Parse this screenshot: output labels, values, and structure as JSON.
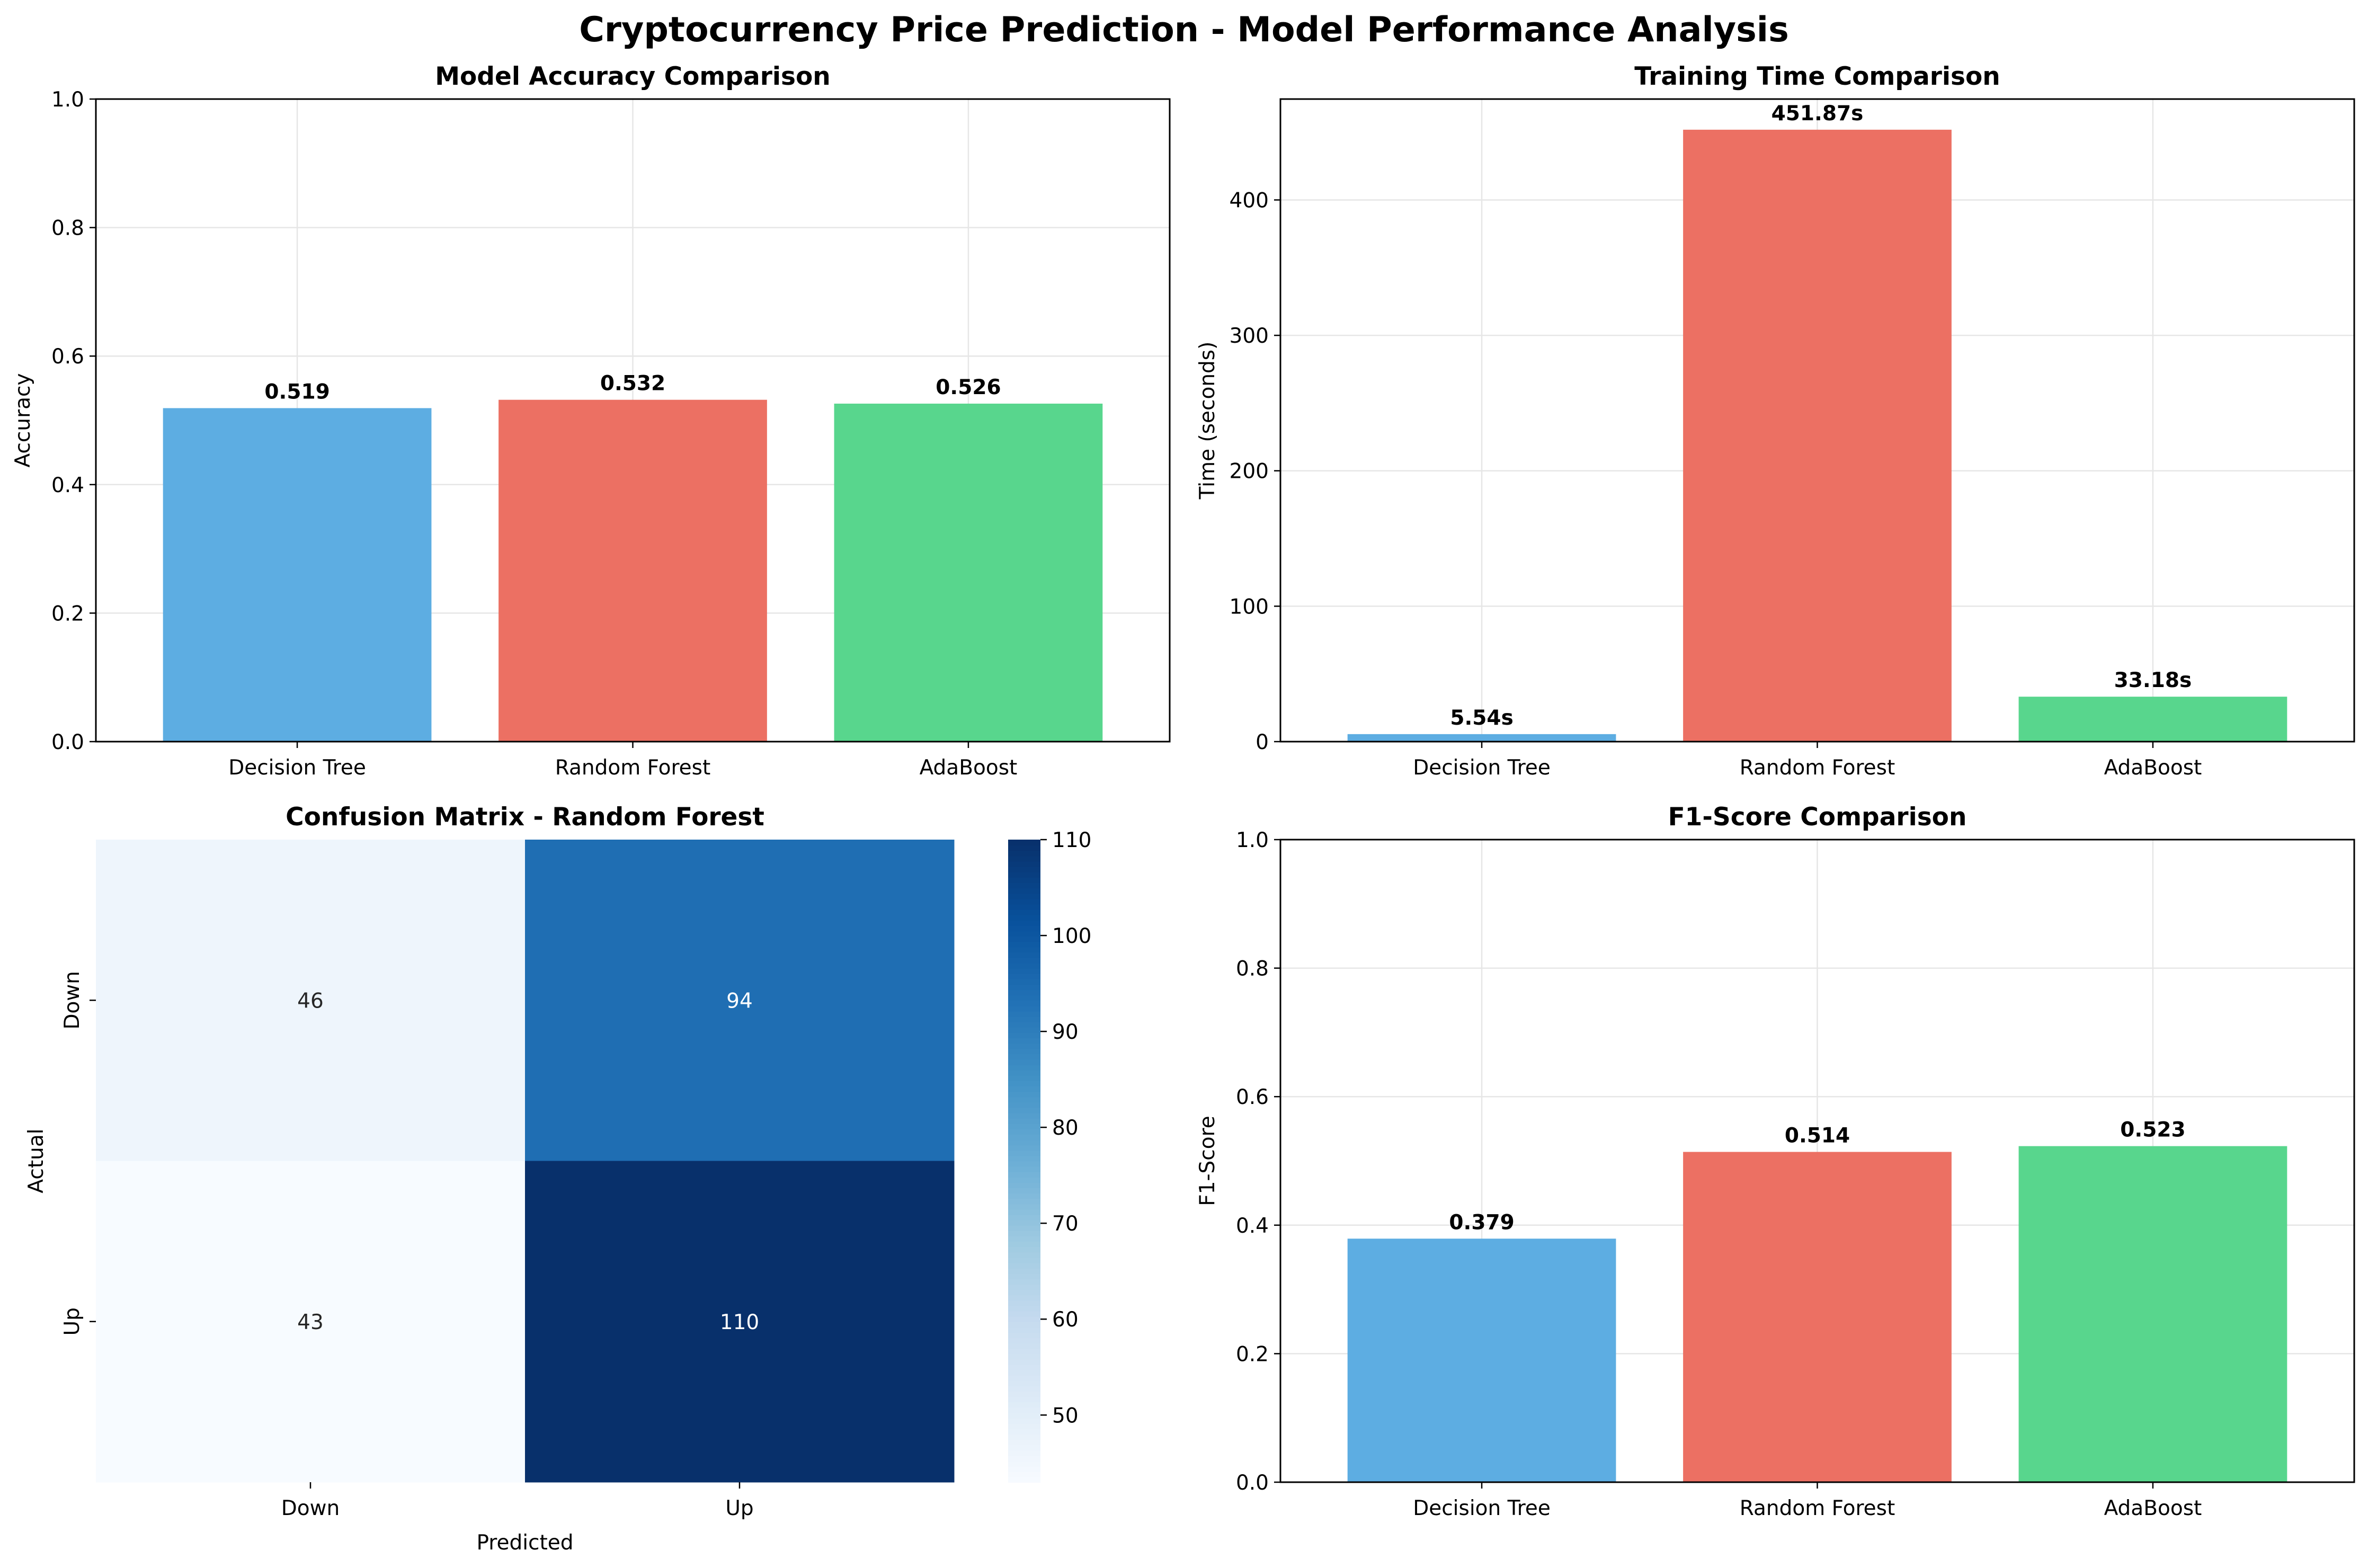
{
  "suptitle": "Cryptocurrency Price Prediction - Model Performance Analysis",
  "colors": {
    "decision_tree": "#5dade2",
    "random_forest": "#ec7063",
    "adaboost": "#58d68d",
    "grid": "#e6e6e6"
  },
  "chart_data": [
    {
      "id": "accuracy",
      "type": "bar",
      "title": "Model Accuracy Comparison",
      "xlabel": "",
      "ylabel": "Accuracy",
      "categories": [
        "Decision Tree",
        "Random Forest",
        "AdaBoost"
      ],
      "values": [
        0.519,
        0.532,
        0.526
      ],
      "data_labels": [
        "0.519",
        "0.532",
        "0.526"
      ],
      "ylim": [
        0,
        1
      ],
      "yticks": [
        0,
        0.2,
        0.4,
        0.6,
        0.8,
        1.0
      ],
      "ytick_labels": [
        "0.0",
        "0.2",
        "0.4",
        "0.6",
        "0.8",
        "1.0"
      ],
      "grid": true
    },
    {
      "id": "training_time",
      "type": "bar",
      "title": "Training Time Comparison",
      "xlabel": "",
      "ylabel": "Time (seconds)",
      "categories": [
        "Decision Tree",
        "Random Forest",
        "AdaBoost"
      ],
      "values": [
        5.54,
        451.87,
        33.18
      ],
      "data_labels": [
        "5.54s",
        "451.87s",
        "33.18s"
      ],
      "ylim": [
        0,
        474.5
      ],
      "yticks": [
        0,
        100,
        200,
        300,
        400
      ],
      "ytick_labels": [
        "0",
        "100",
        "200",
        "300",
        "400"
      ],
      "grid": true
    },
    {
      "id": "confusion_matrix",
      "type": "heatmap",
      "title": "Confusion Matrix - Random Forest",
      "xlabel": "Predicted",
      "ylabel": "Actual",
      "x_categories": [
        "Down",
        "Up"
      ],
      "y_categories": [
        "Down",
        "Up"
      ],
      "matrix": [
        [
          46,
          94
        ],
        [
          43,
          110
        ]
      ],
      "colormap": "Blues",
      "colorbar_range": [
        43,
        110
      ],
      "colorbar_ticks": [
        50,
        60,
        70,
        80,
        90,
        100,
        110
      ],
      "colorbar_tick_labels": [
        "50",
        "60",
        "70",
        "80",
        "90",
        "100",
        "110"
      ]
    },
    {
      "id": "f1_score",
      "type": "bar",
      "title": "F1-Score Comparison",
      "xlabel": "",
      "ylabel": "F1-Score",
      "categories": [
        "Decision Tree",
        "Random Forest",
        "AdaBoost"
      ],
      "values": [
        0.379,
        0.514,
        0.523
      ],
      "data_labels": [
        "0.379",
        "0.514",
        "0.523"
      ],
      "ylim": [
        0,
        1
      ],
      "yticks": [
        0,
        0.2,
        0.4,
        0.6,
        0.8,
        1.0
      ],
      "ytick_labels": [
        "0.0",
        "0.2",
        "0.4",
        "0.6",
        "0.8",
        "1.0"
      ],
      "grid": true
    }
  ]
}
